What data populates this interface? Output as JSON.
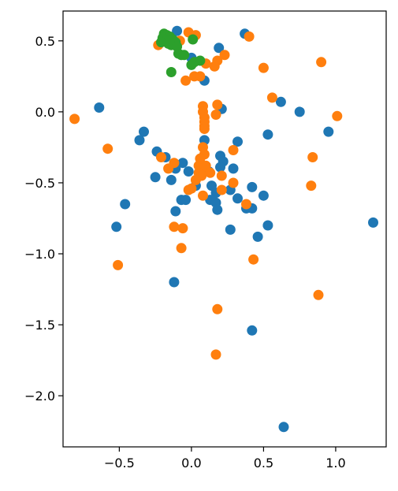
{
  "chart_data": {
    "type": "scatter",
    "title": "",
    "xlabel": "",
    "ylabel": "",
    "xlim": [
      -0.89,
      1.35
    ],
    "ylim": [
      -2.36,
      0.71
    ],
    "grid": false,
    "xticks": [
      {
        "value": -0.5,
        "label": "−0.5"
      },
      {
        "value": 0.0,
        "label": "0.0"
      },
      {
        "value": 0.5,
        "label": "0.5"
      },
      {
        "value": 1.0,
        "label": "1.0"
      }
    ],
    "yticks": [
      {
        "value": 0.5,
        "label": "0.5"
      },
      {
        "value": 0.0,
        "label": "0.0"
      },
      {
        "value": -0.5,
        "label": "−0.5"
      },
      {
        "value": -1.0,
        "label": "−1.0"
      },
      {
        "value": -1.5,
        "label": "−1.5"
      },
      {
        "value": -2.0,
        "label": "−2.0"
      }
    ],
    "series": [
      {
        "color": "#1f77b4",
        "points": [
          [
            -0.1,
            0.57
          ],
          [
            0.37,
            0.55
          ],
          [
            0.19,
            0.45
          ],
          [
            0.0,
            0.38
          ],
          [
            0.09,
            0.22
          ],
          [
            -0.64,
            0.03
          ],
          [
            0.21,
            0.02
          ],
          [
            0.62,
            0.07
          ],
          [
            0.75,
            0.0
          ],
          [
            0.95,
            -0.14
          ],
          [
            -0.33,
            -0.14
          ],
          [
            -0.36,
            -0.2
          ],
          [
            0.53,
            -0.16
          ],
          [
            0.32,
            -0.21
          ],
          [
            0.09,
            -0.2
          ],
          [
            -0.24,
            -0.28
          ],
          [
            -0.18,
            -0.32
          ],
          [
            0.2,
            -0.31
          ],
          [
            0.22,
            -0.35
          ],
          [
            -0.06,
            -0.36
          ],
          [
            -0.11,
            -0.4
          ],
          [
            0.2,
            -0.39
          ],
          [
            0.29,
            -0.4
          ],
          [
            0.12,
            -0.42
          ],
          [
            -0.02,
            -0.42
          ],
          [
            -0.25,
            -0.46
          ],
          [
            -0.14,
            -0.48
          ],
          [
            0.03,
            -0.52
          ],
          [
            0.14,
            -0.52
          ],
          [
            0.42,
            -0.53
          ],
          [
            0.27,
            -0.55
          ],
          [
            0.17,
            -0.57
          ],
          [
            0.5,
            -0.59
          ],
          [
            0.32,
            -0.61
          ],
          [
            -0.07,
            -0.62
          ],
          [
            -0.04,
            -0.62
          ],
          [
            0.13,
            -0.62
          ],
          [
            0.17,
            -0.64
          ],
          [
            -0.46,
            -0.65
          ],
          [
            0.42,
            -0.68
          ],
          [
            0.38,
            -0.68
          ],
          [
            0.18,
            -0.69
          ],
          [
            -0.11,
            -0.7
          ],
          [
            0.53,
            -0.8
          ],
          [
            -0.52,
            -0.81
          ],
          [
            0.27,
            -0.83
          ],
          [
            0.46,
            -0.88
          ],
          [
            1.26,
            -0.78
          ],
          [
            -0.12,
            -1.2
          ],
          [
            0.42,
            -1.54
          ],
          [
            0.64,
            -2.22
          ]
        ]
      },
      {
        "color": "#ff7f0e",
        "points": [
          [
            -0.23,
            0.47
          ],
          [
            -0.08,
            0.5
          ],
          [
            0.4,
            0.53
          ],
          [
            -0.02,
            0.56
          ],
          [
            0.03,
            0.54
          ],
          [
            0.23,
            0.4
          ],
          [
            0.18,
            0.36
          ],
          [
            0.1,
            0.34
          ],
          [
            0.16,
            0.32
          ],
          [
            0.5,
            0.31
          ],
          [
            0.9,
            0.35
          ],
          [
            -0.04,
            0.22
          ],
          [
            0.02,
            0.25
          ],
          [
            0.06,
            0.25
          ],
          [
            0.56,
            0.1
          ],
          [
            -0.81,
            -0.05
          ],
          [
            1.01,
            -0.03
          ],
          [
            0.08,
            0.04
          ],
          [
            0.18,
            0.05
          ],
          [
            0.08,
            0.0
          ],
          [
            0.17,
            -0.02
          ],
          [
            0.09,
            -0.04
          ],
          [
            0.09,
            -0.07
          ],
          [
            0.09,
            -0.1
          ],
          [
            0.09,
            -0.12
          ],
          [
            -0.58,
            -0.26
          ],
          [
            0.08,
            -0.25
          ],
          [
            0.29,
            -0.27
          ],
          [
            -0.21,
            -0.32
          ],
          [
            0.09,
            -0.3
          ],
          [
            0.84,
            -0.32
          ],
          [
            0.06,
            -0.33
          ],
          [
            -0.12,
            -0.36
          ],
          [
            0.05,
            -0.38
          ],
          [
            0.1,
            -0.38
          ],
          [
            0.07,
            -0.4
          ],
          [
            -0.16,
            -0.4
          ],
          [
            0.05,
            -0.43
          ],
          [
            0.13,
            -0.43
          ],
          [
            0.07,
            -0.45
          ],
          [
            0.21,
            -0.45
          ],
          [
            0.03,
            -0.48
          ],
          [
            0.29,
            -0.5
          ],
          [
            0.83,
            -0.52
          ],
          [
            0.0,
            -0.54
          ],
          [
            -0.02,
            -0.55
          ],
          [
            0.21,
            -0.55
          ],
          [
            0.08,
            -0.59
          ],
          [
            0.38,
            -0.65
          ],
          [
            -0.12,
            -0.81
          ],
          [
            -0.06,
            -0.82
          ],
          [
            -0.07,
            -0.96
          ],
          [
            0.43,
            -1.04
          ],
          [
            -0.51,
            -1.08
          ],
          [
            0.88,
            -1.29
          ],
          [
            0.18,
            -1.39
          ],
          [
            0.17,
            -1.71
          ]
        ]
      },
      {
        "color": "#2ca02c",
        "points": [
          [
            -0.19,
            0.55
          ],
          [
            -0.17,
            0.54
          ],
          [
            -0.15,
            0.53
          ],
          [
            -0.2,
            0.52
          ],
          [
            -0.13,
            0.51
          ],
          [
            -0.18,
            0.5
          ],
          [
            -0.11,
            0.49
          ],
          [
            -0.21,
            0.49
          ],
          [
            -0.16,
            0.48
          ],
          [
            -0.14,
            0.47
          ],
          [
            -0.1,
            0.46
          ],
          [
            0.01,
            0.51
          ],
          [
            -0.09,
            0.41
          ],
          [
            -0.07,
            0.4
          ],
          [
            -0.05,
            0.4
          ],
          [
            0.06,
            0.36
          ],
          [
            0.02,
            0.35
          ],
          [
            0.0,
            0.33
          ],
          [
            -0.14,
            0.28
          ]
        ]
      }
    ]
  }
}
